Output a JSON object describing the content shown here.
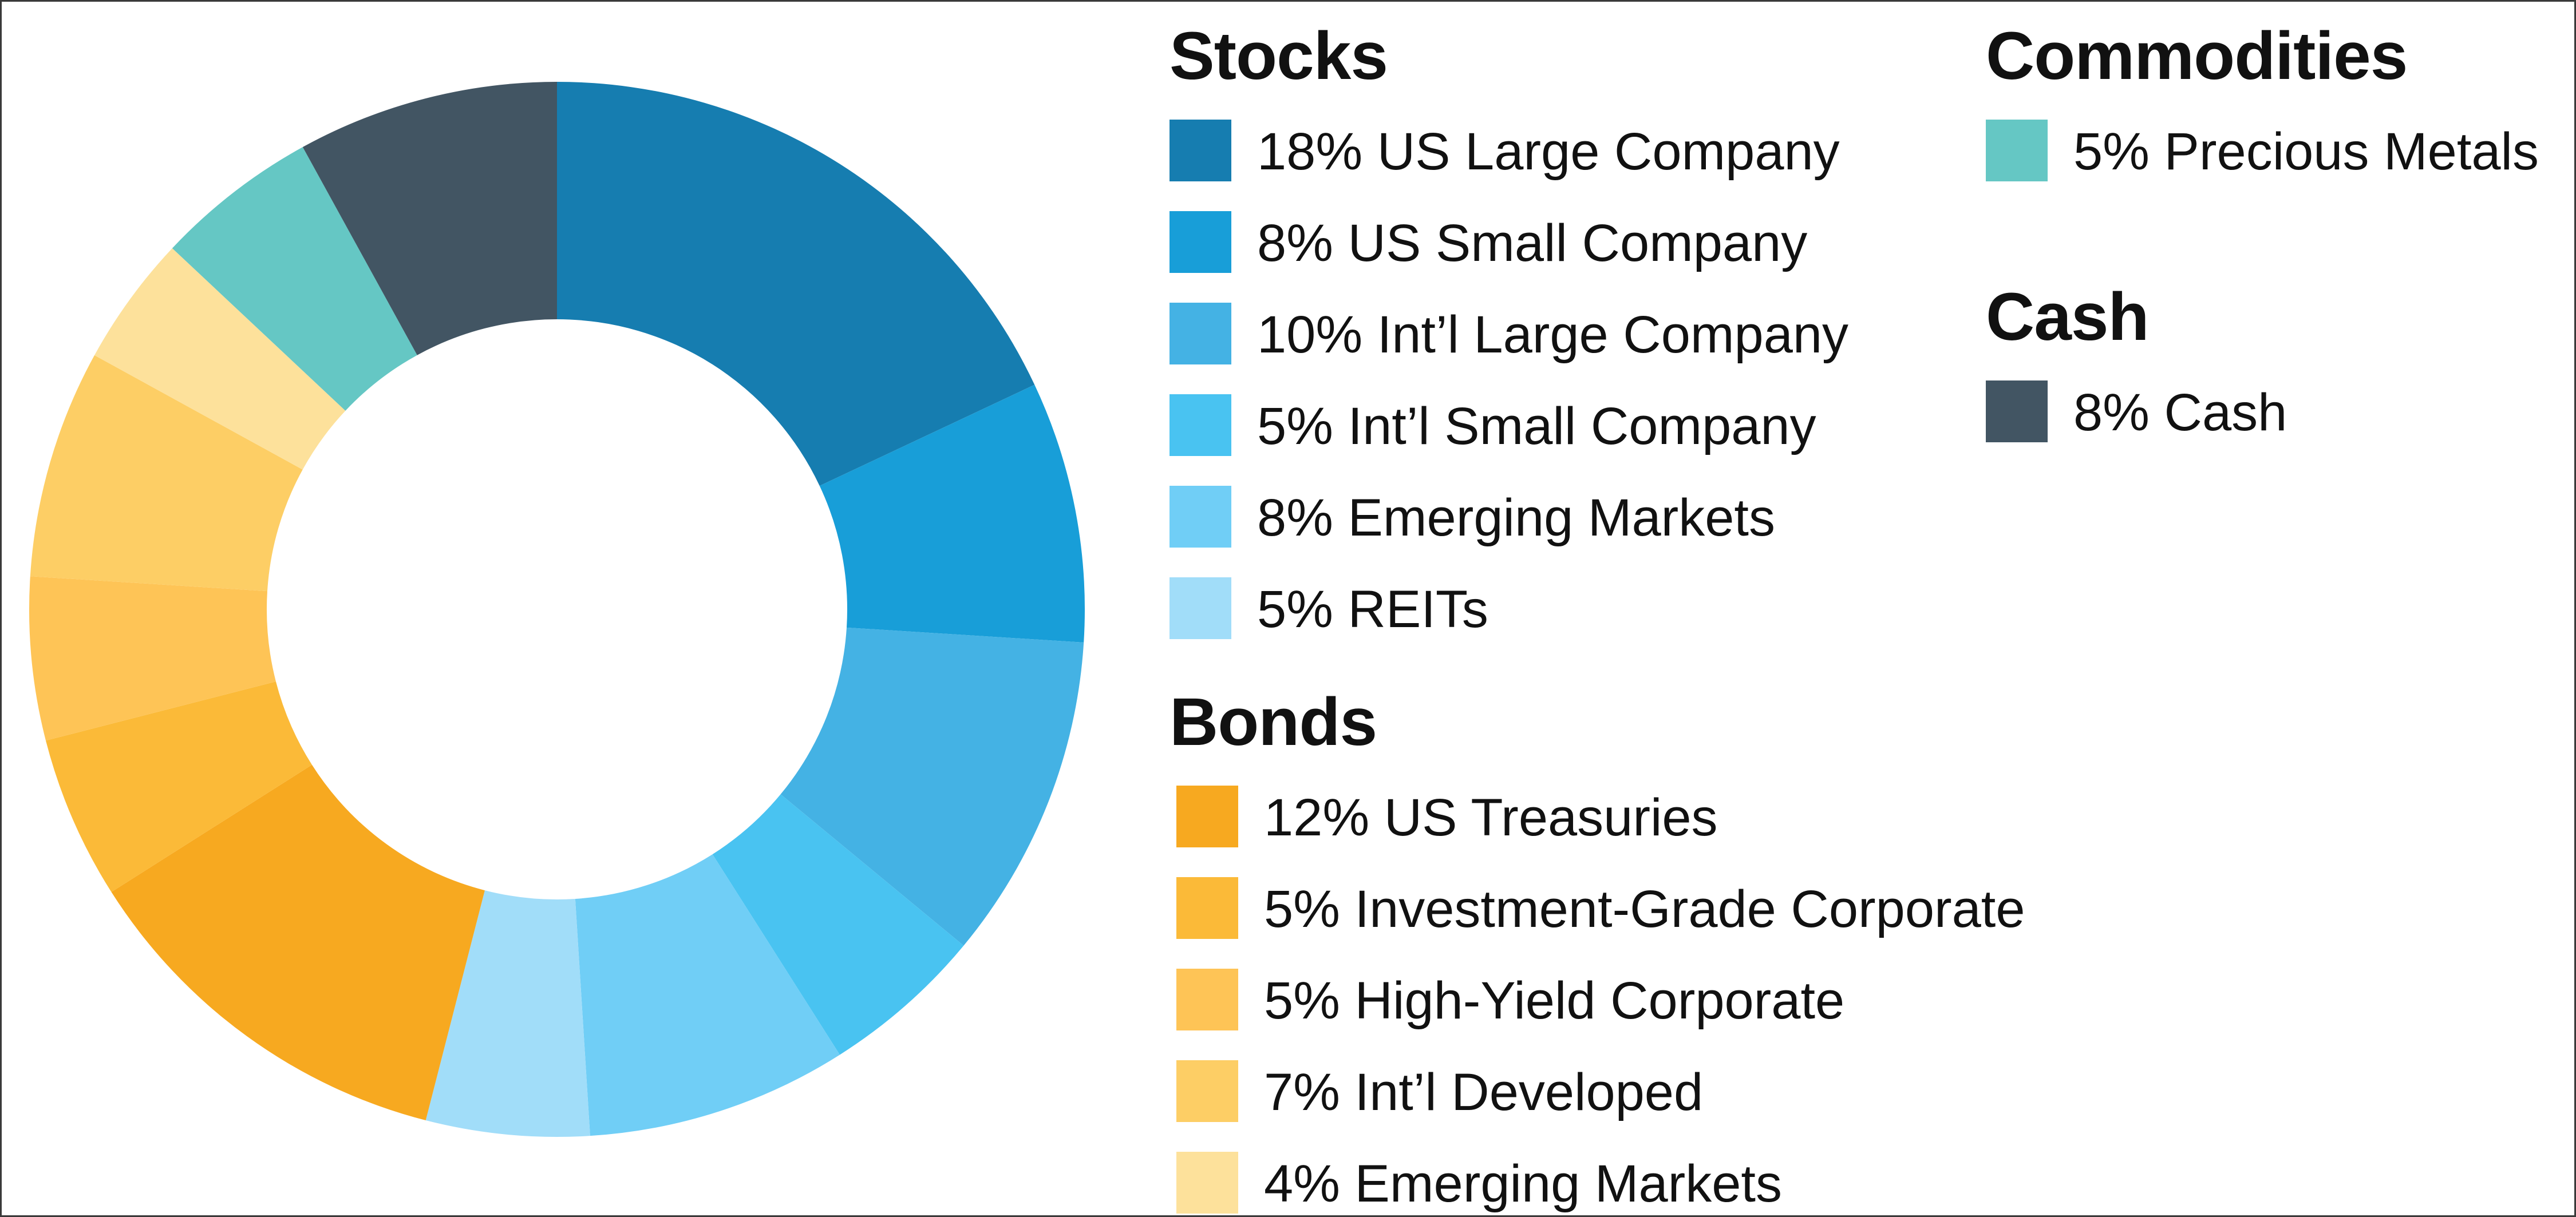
{
  "chart_data": {
    "type": "pie",
    "style": "donut",
    "start_angle_deg": 0,
    "direction": "clockwise",
    "slices": [
      {
        "label": "18% US Large Company",
        "value": 18,
        "color": "#167DB0"
      },
      {
        "label": "8% US Small Company",
        "value": 8,
        "color": "#189ED8"
      },
      {
        "label": "10% Int’l Large Company",
        "value": 10,
        "color": "#44B2E4"
      },
      {
        "label": "5% Int’l Small Company",
        "value": 5,
        "color": "#49C3F1"
      },
      {
        "label": "8% Emerging Markets",
        "value": 8,
        "color": "#70CEF6"
      },
      {
        "label": "5% REITs",
        "value": 5,
        "color": "#A1DDF9"
      },
      {
        "label": "12% US Treasuries",
        "value": 12,
        "color": "#F7A920"
      },
      {
        "label": "5% Investment-Grade Corporate",
        "value": 5,
        "color": "#FBBA38"
      },
      {
        "label": "5% High-Yield Corporate",
        "value": 5,
        "color": "#FEC456"
      },
      {
        "label": "7% Int’l Developed",
        "value": 7,
        "color": "#FDCE65"
      },
      {
        "label": "4% Emerging Markets",
        "value": 4,
        "color": "#FDE19B"
      },
      {
        "label": "5% Precious Metals",
        "value": 5,
        "color": "#65C7C4"
      },
      {
        "label": "8% Cash",
        "value": 8,
        "color": "#425563"
      }
    ]
  },
  "legend": {
    "stocks": {
      "title": "Stocks",
      "items": [
        {
          "label": "18% US Large Company",
          "color": "#167DB0"
        },
        {
          "label": "8% US Small Company",
          "color": "#189ED8"
        },
        {
          "label": "10% Int’l Large Company",
          "color": "#44B2E4"
        },
        {
          "label": "5% Int’l Small Company",
          "color": "#49C3F1"
        },
        {
          "label": "8% Emerging Markets",
          "color": "#70CEF6"
        },
        {
          "label": "5% REITs",
          "color": "#A1DDF9"
        }
      ]
    },
    "bonds": {
      "title": "Bonds",
      "items": [
        {
          "label": "12% US Treasuries",
          "color": "#F7A920"
        },
        {
          "label": "5% Investment-Grade Corporate",
          "color": "#FBBA38"
        },
        {
          "label": "5% High-Yield Corporate",
          "color": "#FEC456"
        },
        {
          "label": "7% Int’l Developed",
          "color": "#FDCE65"
        },
        {
          "label": "4% Emerging Markets",
          "color": "#FDE19B"
        }
      ]
    },
    "commodities": {
      "title": "Commodities",
      "items": [
        {
          "label": "5% Precious Metals",
          "color": "#65C7C4"
        }
      ]
    },
    "cash": {
      "title": "Cash",
      "items": [
        {
          "label": "8% Cash",
          "color": "#425563"
        }
      ]
    }
  }
}
